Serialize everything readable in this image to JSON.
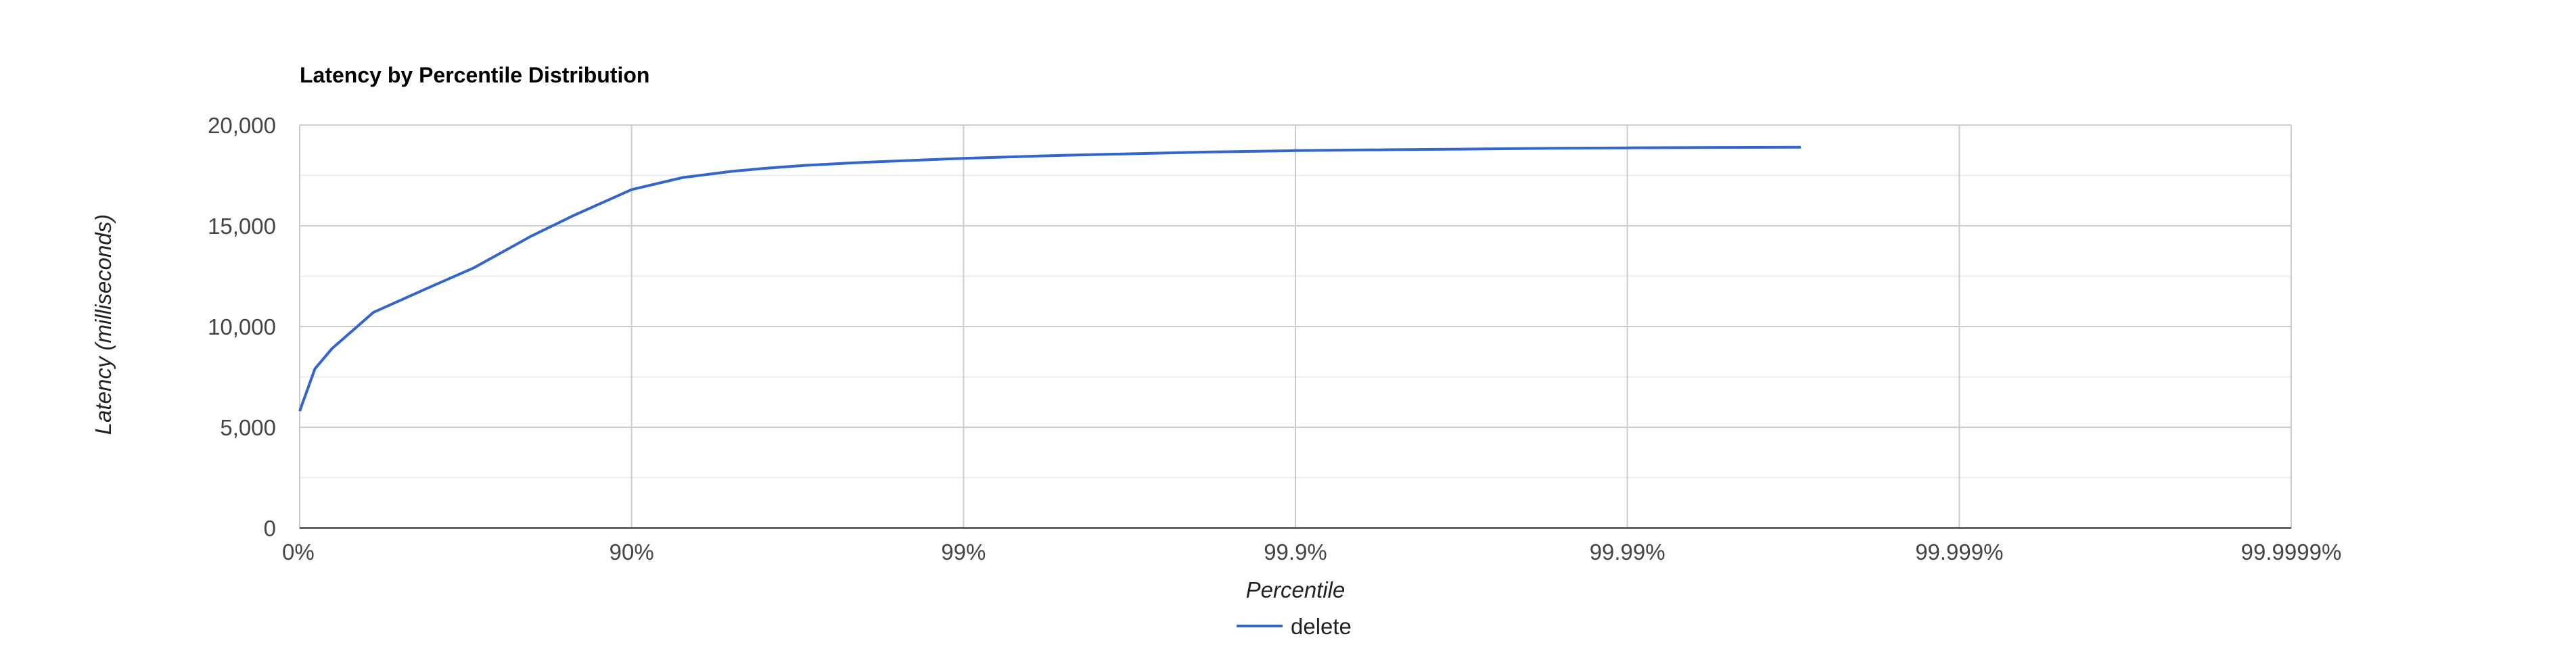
{
  "chart_data": {
    "type": "line",
    "title": "Latency by Percentile Distribution",
    "xlabel": "Percentile",
    "ylabel": "Latency (milliseconds)",
    "x_scale": "log-percentile",
    "x_ticks": [
      "0%",
      "90%",
      "99%",
      "99.9%",
      "99.99%",
      "99.999%",
      "99.9999%"
    ],
    "y_ticks": [
      "0",
      "5,000",
      "10,000",
      "15,000",
      "20,000"
    ],
    "ylim": [
      0,
      20000
    ],
    "grid": true,
    "legend_position": "bottom",
    "series": [
      {
        "name": "delete",
        "color": "#3366cc",
        "x": [
          0,
          10,
          20,
          40,
          60,
          70,
          80,
          85,
          90,
          93,
          95,
          96,
          97,
          98,
          99,
          99.5,
          99.7,
          99.8,
          99.9,
          99.95,
          99.97,
          99.98,
          99.99,
          99.995,
          99.997
        ],
        "y": [
          5800,
          7900,
          8900,
          10700,
          12000,
          12900,
          14500,
          15500,
          16800,
          17400,
          17700,
          17850,
          18000,
          18150,
          18350,
          18500,
          18580,
          18650,
          18730,
          18780,
          18810,
          18840,
          18870,
          18890,
          18900
        ]
      }
    ]
  }
}
